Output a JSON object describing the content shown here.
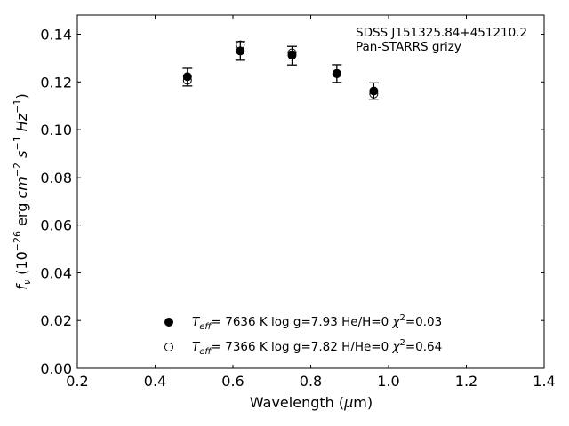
{
  "chart_data": {
    "type": "scatter",
    "title": "",
    "xlabel": "Wavelength (μm)",
    "ylabel": "f_ν (10^-26 erg cm^-2 s^-1 Hz^-1)",
    "xlim": [
      0.2,
      1.4
    ],
    "ylim": [
      0.0,
      0.148
    ],
    "x_ticks": [
      0.2,
      0.4,
      0.6,
      0.8,
      1.0,
      1.2,
      1.4
    ],
    "y_ticks": [
      0.0,
      0.02,
      0.04,
      0.06,
      0.08,
      0.1,
      0.12,
      0.14
    ],
    "x_tick_labels": [
      "0.2",
      "0.4",
      "0.6",
      "0.8",
      "1.0",
      "1.2",
      "1.4"
    ],
    "y_tick_labels": [
      "0.00",
      "0.02",
      "0.04",
      "0.06",
      "0.08",
      "0.10",
      "0.12",
      "0.14"
    ],
    "grid": false,
    "legend_position": "bottom-center",
    "annotation": {
      "line1": "SDSS J151325.84+451210.2",
      "line2": "Pan-STARRS grizy"
    },
    "observed": {
      "x": [
        0.483,
        0.619,
        0.752,
        0.867,
        0.962
      ],
      "y": [
        0.122,
        0.133,
        0.131,
        0.1235,
        0.1162
      ],
      "yerr": [
        0.0037,
        0.0039,
        0.0039,
        0.0037,
        0.0034
      ]
    },
    "series": [
      {
        "name": "Teff= 7636 K log g=7.93 He/H=0 χ2=0.03",
        "marker": "filled",
        "x": [
          0.483,
          0.619,
          0.752,
          0.867,
          0.962
        ],
        "y": [
          0.1222,
          0.133,
          0.1312,
          0.1235,
          0.1162
        ]
      },
      {
        "name": "Teff= 7366 K log g=7.82 H/He=0 χ2=0.64",
        "marker": "open",
        "x": [
          0.483,
          0.619,
          0.752,
          0.867,
          0.962
        ],
        "y": [
          0.1207,
          0.1355,
          0.1322,
          0.1235,
          0.115
        ]
      }
    ],
    "legend": [
      {
        "teff_label": "T",
        "teff_sub": "eff",
        "eq": "=  7636 K  log g=7.93  He/H=0  ",
        "chi": "χ",
        "chi_sup": "2",
        "chi_val": "=0.03"
      },
      {
        "teff_label": "T",
        "teff_sub": "eff",
        "eq": "=  7366 K  log g=7.82  H/He=0  ",
        "chi": "χ",
        "chi_sup": "2",
        "chi_val": "=0.64"
      }
    ],
    "colors": {
      "marker": "#000000",
      "axis": "#000000"
    }
  }
}
